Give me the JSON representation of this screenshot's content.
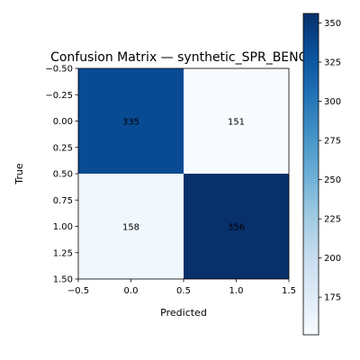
{
  "chart_data": {
    "type": "heatmap",
    "title": "Confusion Matrix — synthetic_SPR_BENCH",
    "xlabel": "Predicted",
    "ylabel": "True",
    "matrix": [
      [
        335,
        151
      ],
      [
        158,
        356
      ]
    ],
    "cell_labels": [
      [
        "335",
        "151"
      ],
      [
        "158",
        "356"
      ]
    ],
    "xlim": [
      -0.5,
      1.5
    ],
    "ylim": [
      1.5,
      -0.5
    ],
    "x_ticks": [
      "−0.5",
      "0.0",
      "0.5",
      "1.0",
      "1.5"
    ],
    "y_ticks": [
      "−0.50",
      "−0.25",
      "0.00",
      "0.25",
      "0.50",
      "0.75",
      "1.00",
      "1.25",
      "1.50"
    ],
    "colormap": "Blues",
    "colorbar": {
      "vmin": 151,
      "vmax": 356,
      "ticks": [
        "175",
        "200",
        "225",
        "250",
        "275",
        "300",
        "325",
        "350"
      ]
    },
    "grid": false
  }
}
